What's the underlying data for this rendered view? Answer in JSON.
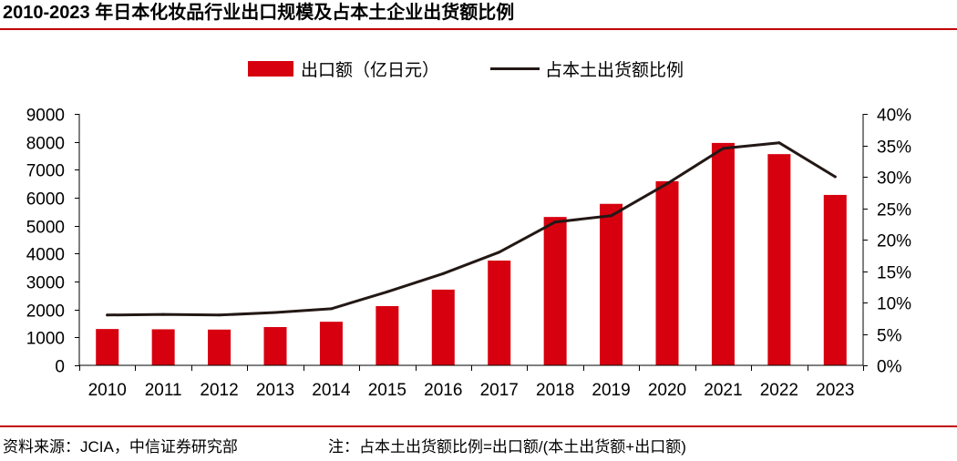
{
  "title": "2010-2023 年日本化妆品行业出口规模及占本土企业出货额比例",
  "footer": {
    "source": "资料来源：JCIA，中信证券研究部",
    "note": "注：占本土出货额比例=出口额/(本土出货额+出口额)"
  },
  "colors": {
    "accent_rule": "#C00000",
    "bar": "#D7000F",
    "line": "#231815",
    "axis": "#000000",
    "text": "#000000"
  },
  "chart_data": {
    "type": "bar",
    "categories": [
      "2010",
      "2011",
      "2012",
      "2013",
      "2014",
      "2015",
      "2016",
      "2017",
      "2018",
      "2019",
      "2020",
      "2021",
      "2022",
      "2023"
    ],
    "series": [
      {
        "name": "出口额（亿日元）",
        "type": "bar",
        "axis": "left",
        "values": [
          1300,
          1290,
          1280,
          1370,
          1560,
          2120,
          2710,
          3750,
          5310,
          5780,
          6590,
          7960,
          7560,
          6100
        ]
      },
      {
        "name": "占本土出货额比例",
        "type": "line",
        "axis": "right",
        "unit": "%",
        "values": [
          8.0,
          8.1,
          8.0,
          8.4,
          9.0,
          11.7,
          14.6,
          18.0,
          22.8,
          23.8,
          28.9,
          34.5,
          35.4,
          30.0
        ]
      }
    ],
    "y_left": {
      "ylim": [
        0,
        9000
      ],
      "ticks": [
        0,
        1000,
        2000,
        3000,
        4000,
        5000,
        6000,
        7000,
        8000,
        9000
      ],
      "tick_labels": [
        "0",
        "1000",
        "2000",
        "3000",
        "4000",
        "5000",
        "6000",
        "7000",
        "8000",
        "9000"
      ]
    },
    "y_right": {
      "ylim": [
        0,
        40
      ],
      "ticks": [
        0,
        5,
        10,
        15,
        20,
        25,
        30,
        35,
        40
      ],
      "tick_labels": [
        "0%",
        "5%",
        "10%",
        "15%",
        "20%",
        "25%",
        "30%",
        "35%",
        "40%"
      ]
    },
    "legend": "top-center",
    "grid": false
  }
}
